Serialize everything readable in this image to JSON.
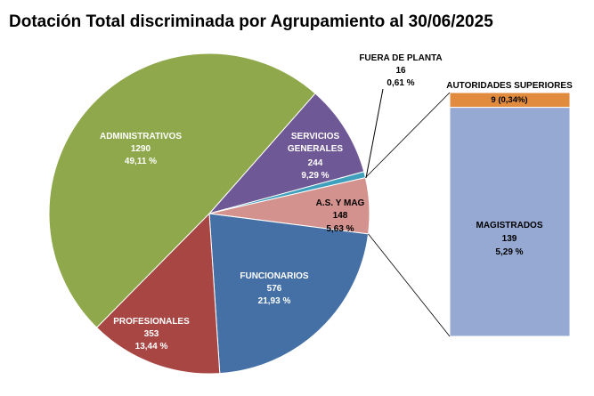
{
  "chart_data": {
    "type": "pie",
    "subtype": "pie-of-bar",
    "title": "Dotación Total discriminada por Agrupamiento al 30/06/2025",
    "slices": [
      {
        "name": "SERVICIOS GENERALES",
        "name_lines": [
          "SERVICIOS",
          "GENERALES"
        ],
        "value": 244,
        "pct": "9,29 %",
        "color": "#6F5896"
      },
      {
        "name": "FUERA DE PLANTA",
        "value": 16,
        "pct": "0,61 %",
        "color": "#3FA0BD"
      },
      {
        "name": "A.S. Y MAG",
        "value": 148,
        "pct": "5,63 %",
        "color": "#D4928F"
      },
      {
        "name": "FUNCIONARIOS",
        "value": 576,
        "pct": "21,93 %",
        "color": "#4470A5"
      },
      {
        "name": "PROFESIONALES",
        "value": 353,
        "pct": "13,44 %",
        "color": "#A84643"
      },
      {
        "name": "ADMINISTRATIVOS",
        "value": 1290,
        "pct": "49,11 %",
        "color": "#8EA84B"
      }
    ],
    "breakdown_of": "A.S. Y MAG",
    "bar_segments": [
      {
        "name": "AUTORIDADES SUPERIORES",
        "value": 9,
        "label": "9  (0,34%)",
        "color": "#E08B3E"
      },
      {
        "name": "MAGISTRADOS",
        "value": 139,
        "pct": "5,29 %",
        "color": "#95A9D2"
      }
    ]
  }
}
